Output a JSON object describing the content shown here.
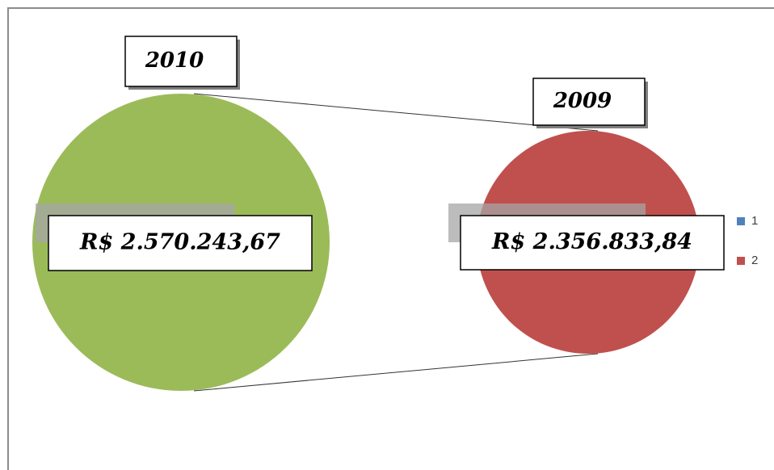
{
  "chart_data": {
    "type": "pie_of_pie",
    "categories": [
      "2010",
      "2009"
    ],
    "values": [
      2570243.67,
      2356833.84
    ],
    "value_labels": [
      "R$ 2.570.243,67",
      "R$ 2.356.833,84"
    ],
    "colors": [
      "#9bbb59",
      "#c0504d"
    ],
    "legend": {
      "entries": [
        "1",
        "2"
      ],
      "colors": [
        "#4f81bd",
        "#c0504d"
      ],
      "position": "right"
    }
  }
}
